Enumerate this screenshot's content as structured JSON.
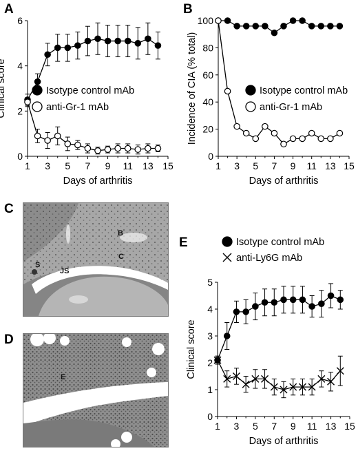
{
  "panels": {
    "a": "A",
    "b": "B",
    "c": "C",
    "d": "D",
    "e": "E"
  },
  "micrographs": {
    "c": {
      "labels": [
        "B",
        "C",
        "S",
        "JS"
      ]
    },
    "d": {
      "labels": [
        "E"
      ]
    }
  },
  "colors": {
    "line": "#000000",
    "filled": "#000000",
    "open": "#ffffff",
    "tissue_c": "#9a9a9a",
    "tissue_d": "#8a8a8a"
  },
  "chart_data": [
    {
      "id": "A",
      "type": "line",
      "xlabel": "Days of arthritis",
      "ylabel": "Clinical score",
      "xlim": [
        1,
        15
      ],
      "ylim": [
        0,
        6
      ],
      "xticks": [
        1,
        3,
        5,
        7,
        9,
        11,
        13,
        15
      ],
      "yticks": [
        0,
        2,
        4,
        6
      ],
      "legend_position": "center-right",
      "series": [
        {
          "name": "Isotype control mAb",
          "marker": "filled-circle",
          "x": [
            1,
            2,
            3,
            4,
            5,
            6,
            7,
            8,
            9,
            10,
            11,
            12,
            13,
            14
          ],
          "y": [
            2.5,
            3.3,
            4.5,
            4.8,
            4.8,
            4.9,
            5.1,
            5.2,
            5.1,
            5.1,
            5.1,
            5.0,
            5.2,
            4.9
          ],
          "err": [
            0.25,
            0.35,
            0.5,
            0.6,
            0.6,
            0.6,
            0.65,
            0.7,
            0.7,
            0.7,
            0.7,
            0.7,
            0.7,
            0.6
          ]
        },
        {
          "name": "anti-Gr-1 mAb",
          "marker": "open-circle",
          "x": [
            1,
            2,
            3,
            4,
            5,
            6,
            7,
            8,
            9,
            10,
            11,
            12,
            13,
            14
          ],
          "y": [
            2.4,
            0.9,
            0.7,
            0.9,
            0.55,
            0.5,
            0.35,
            0.25,
            0.3,
            0.35,
            0.35,
            0.3,
            0.35,
            0.35
          ],
          "err": [
            0.2,
            0.3,
            0.35,
            0.4,
            0.3,
            0.2,
            0.2,
            0.15,
            0.15,
            0.2,
            0.2,
            0.2,
            0.2,
            0.15
          ]
        }
      ]
    },
    {
      "id": "B",
      "type": "line",
      "xlabel": "Days of arthritis",
      "ylabel": "Incidence of CIA (% total)",
      "xlim": [
        1,
        15
      ],
      "ylim": [
        0,
        100
      ],
      "xticks": [
        1,
        3,
        5,
        7,
        9,
        11,
        13,
        15
      ],
      "yticks": [
        0,
        20,
        40,
        60,
        80,
        100
      ],
      "legend_position": "center-right",
      "series": [
        {
          "name": "Isotype control mAb",
          "marker": "filled-circle",
          "x": [
            1,
            2,
            3,
            4,
            5,
            6,
            7,
            8,
            9,
            10,
            11,
            12,
            13,
            14
          ],
          "y": [
            100,
            100,
            96,
            96,
            96,
            96,
            91,
            96,
            100,
            100,
            96,
            96,
            96,
            96
          ]
        },
        {
          "name": "anti-Gr-1 mAb",
          "marker": "open-circle",
          "x": [
            1,
            2,
            3,
            4,
            5,
            6,
            7,
            8,
            9,
            10,
            11,
            12,
            13,
            14
          ],
          "y": [
            100,
            48,
            22,
            17,
            13,
            22,
            17,
            9,
            13,
            13,
            17,
            13,
            13,
            17
          ]
        }
      ]
    },
    {
      "id": "E",
      "type": "line",
      "xlabel": "Days of arthritis",
      "ylabel": "Clinical score",
      "xlim": [
        1,
        15
      ],
      "ylim": [
        0,
        5
      ],
      "xticks": [
        1,
        3,
        5,
        7,
        9,
        11,
        13,
        15
      ],
      "yticks": [
        0,
        1,
        2,
        3,
        4,
        5
      ],
      "legend_position": "top",
      "series": [
        {
          "name": "Isotype control mAb",
          "marker": "filled-circle",
          "x": [
            1,
            2,
            3,
            4,
            5,
            6,
            7,
            8,
            9,
            10,
            11,
            12,
            13,
            14
          ],
          "y": [
            2.1,
            3.0,
            3.9,
            3.9,
            4.1,
            4.25,
            4.25,
            4.35,
            4.35,
            4.35,
            4.1,
            4.2,
            4.5,
            4.35
          ],
          "err": [
            0.15,
            0.5,
            0.4,
            0.45,
            0.5,
            0.5,
            0.5,
            0.5,
            0.5,
            0.5,
            0.4,
            0.5,
            0.45,
            0.35
          ]
        },
        {
          "name": "anti-Ly6G  mAb",
          "marker": "x",
          "x": [
            1,
            2,
            3,
            4,
            5,
            6,
            7,
            8,
            9,
            10,
            11,
            12,
            13,
            14
          ],
          "y": [
            2.1,
            1.4,
            1.5,
            1.2,
            1.4,
            1.4,
            1.1,
            1.0,
            1.1,
            1.1,
            1.1,
            1.4,
            1.3,
            1.7
          ],
          "err": [
            0.15,
            0.3,
            0.3,
            0.3,
            0.35,
            0.35,
            0.3,
            0.3,
            0.3,
            0.3,
            0.3,
            0.3,
            0.35,
            0.55
          ]
        }
      ]
    }
  ]
}
